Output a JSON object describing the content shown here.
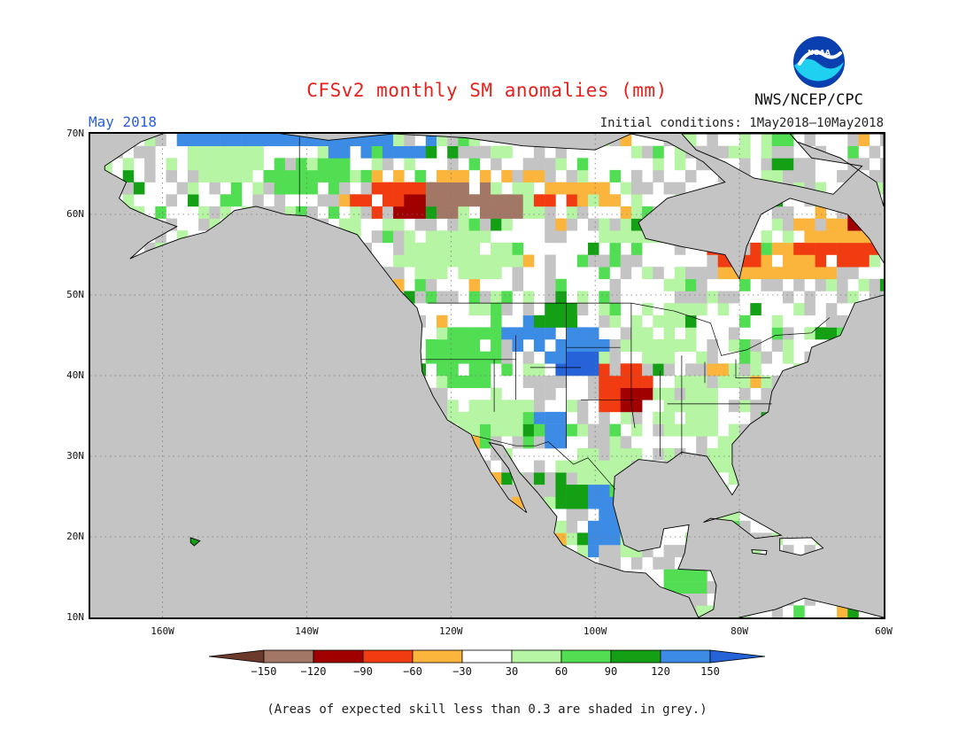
{
  "header": {
    "title": "CFSv2 monthly SM anomalies (mm)",
    "month": "May 2018",
    "initial_conditions": "Initial conditions: 1May2018–10May2018",
    "agency": "NWS/NCEP/CPC",
    "logo_text": "NOAA"
  },
  "map": {
    "region": "North America",
    "lat_range": [
      10,
      70
    ],
    "lon_range": [
      -170,
      -60
    ],
    "lat_labels": [
      "70N",
      "60N",
      "50N",
      "40N",
      "30N",
      "20N",
      "10N"
    ],
    "lon_labels": [
      "160W",
      "140W",
      "120W",
      "100W",
      "80W",
      "60W"
    ],
    "grey_meaning": "expected skill less than 0.3",
    "colors": {
      "grey": "#c4c4c4",
      "land_outline": "#000000",
      "grid": "#666666"
    }
  },
  "colorbar": {
    "tick_labels": [
      "-150",
      "-120",
      "-90",
      "-60",
      "-30",
      "30",
      "60",
      "90",
      "120",
      "150"
    ],
    "bins": [
      {
        "range": "< -150",
        "color": "#6b3a2a"
      },
      {
        "range": "-150 to -120",
        "color": "#a37765"
      },
      {
        "range": "-120 to -90",
        "color": "#a00000"
      },
      {
        "range": "-90 to -60",
        "color": "#f03c10"
      },
      {
        "range": "-60 to -30",
        "color": "#fbb43c"
      },
      {
        "range": "-30 to 30",
        "color": "#ffffff"
      },
      {
        "range": "30 to 60",
        "color": "#b6f5a4"
      },
      {
        "range": "60 to 90",
        "color": "#52de52"
      },
      {
        "range": "90 to 120",
        "color": "#14a014"
      },
      {
        "range": "120 to 150",
        "color": "#3c8ce6"
      },
      {
        "range": "> 150",
        "color": "#2662d8"
      }
    ]
  },
  "footnote": "(Areas of expected skill less than 0.3 are shaded in grey.)"
}
